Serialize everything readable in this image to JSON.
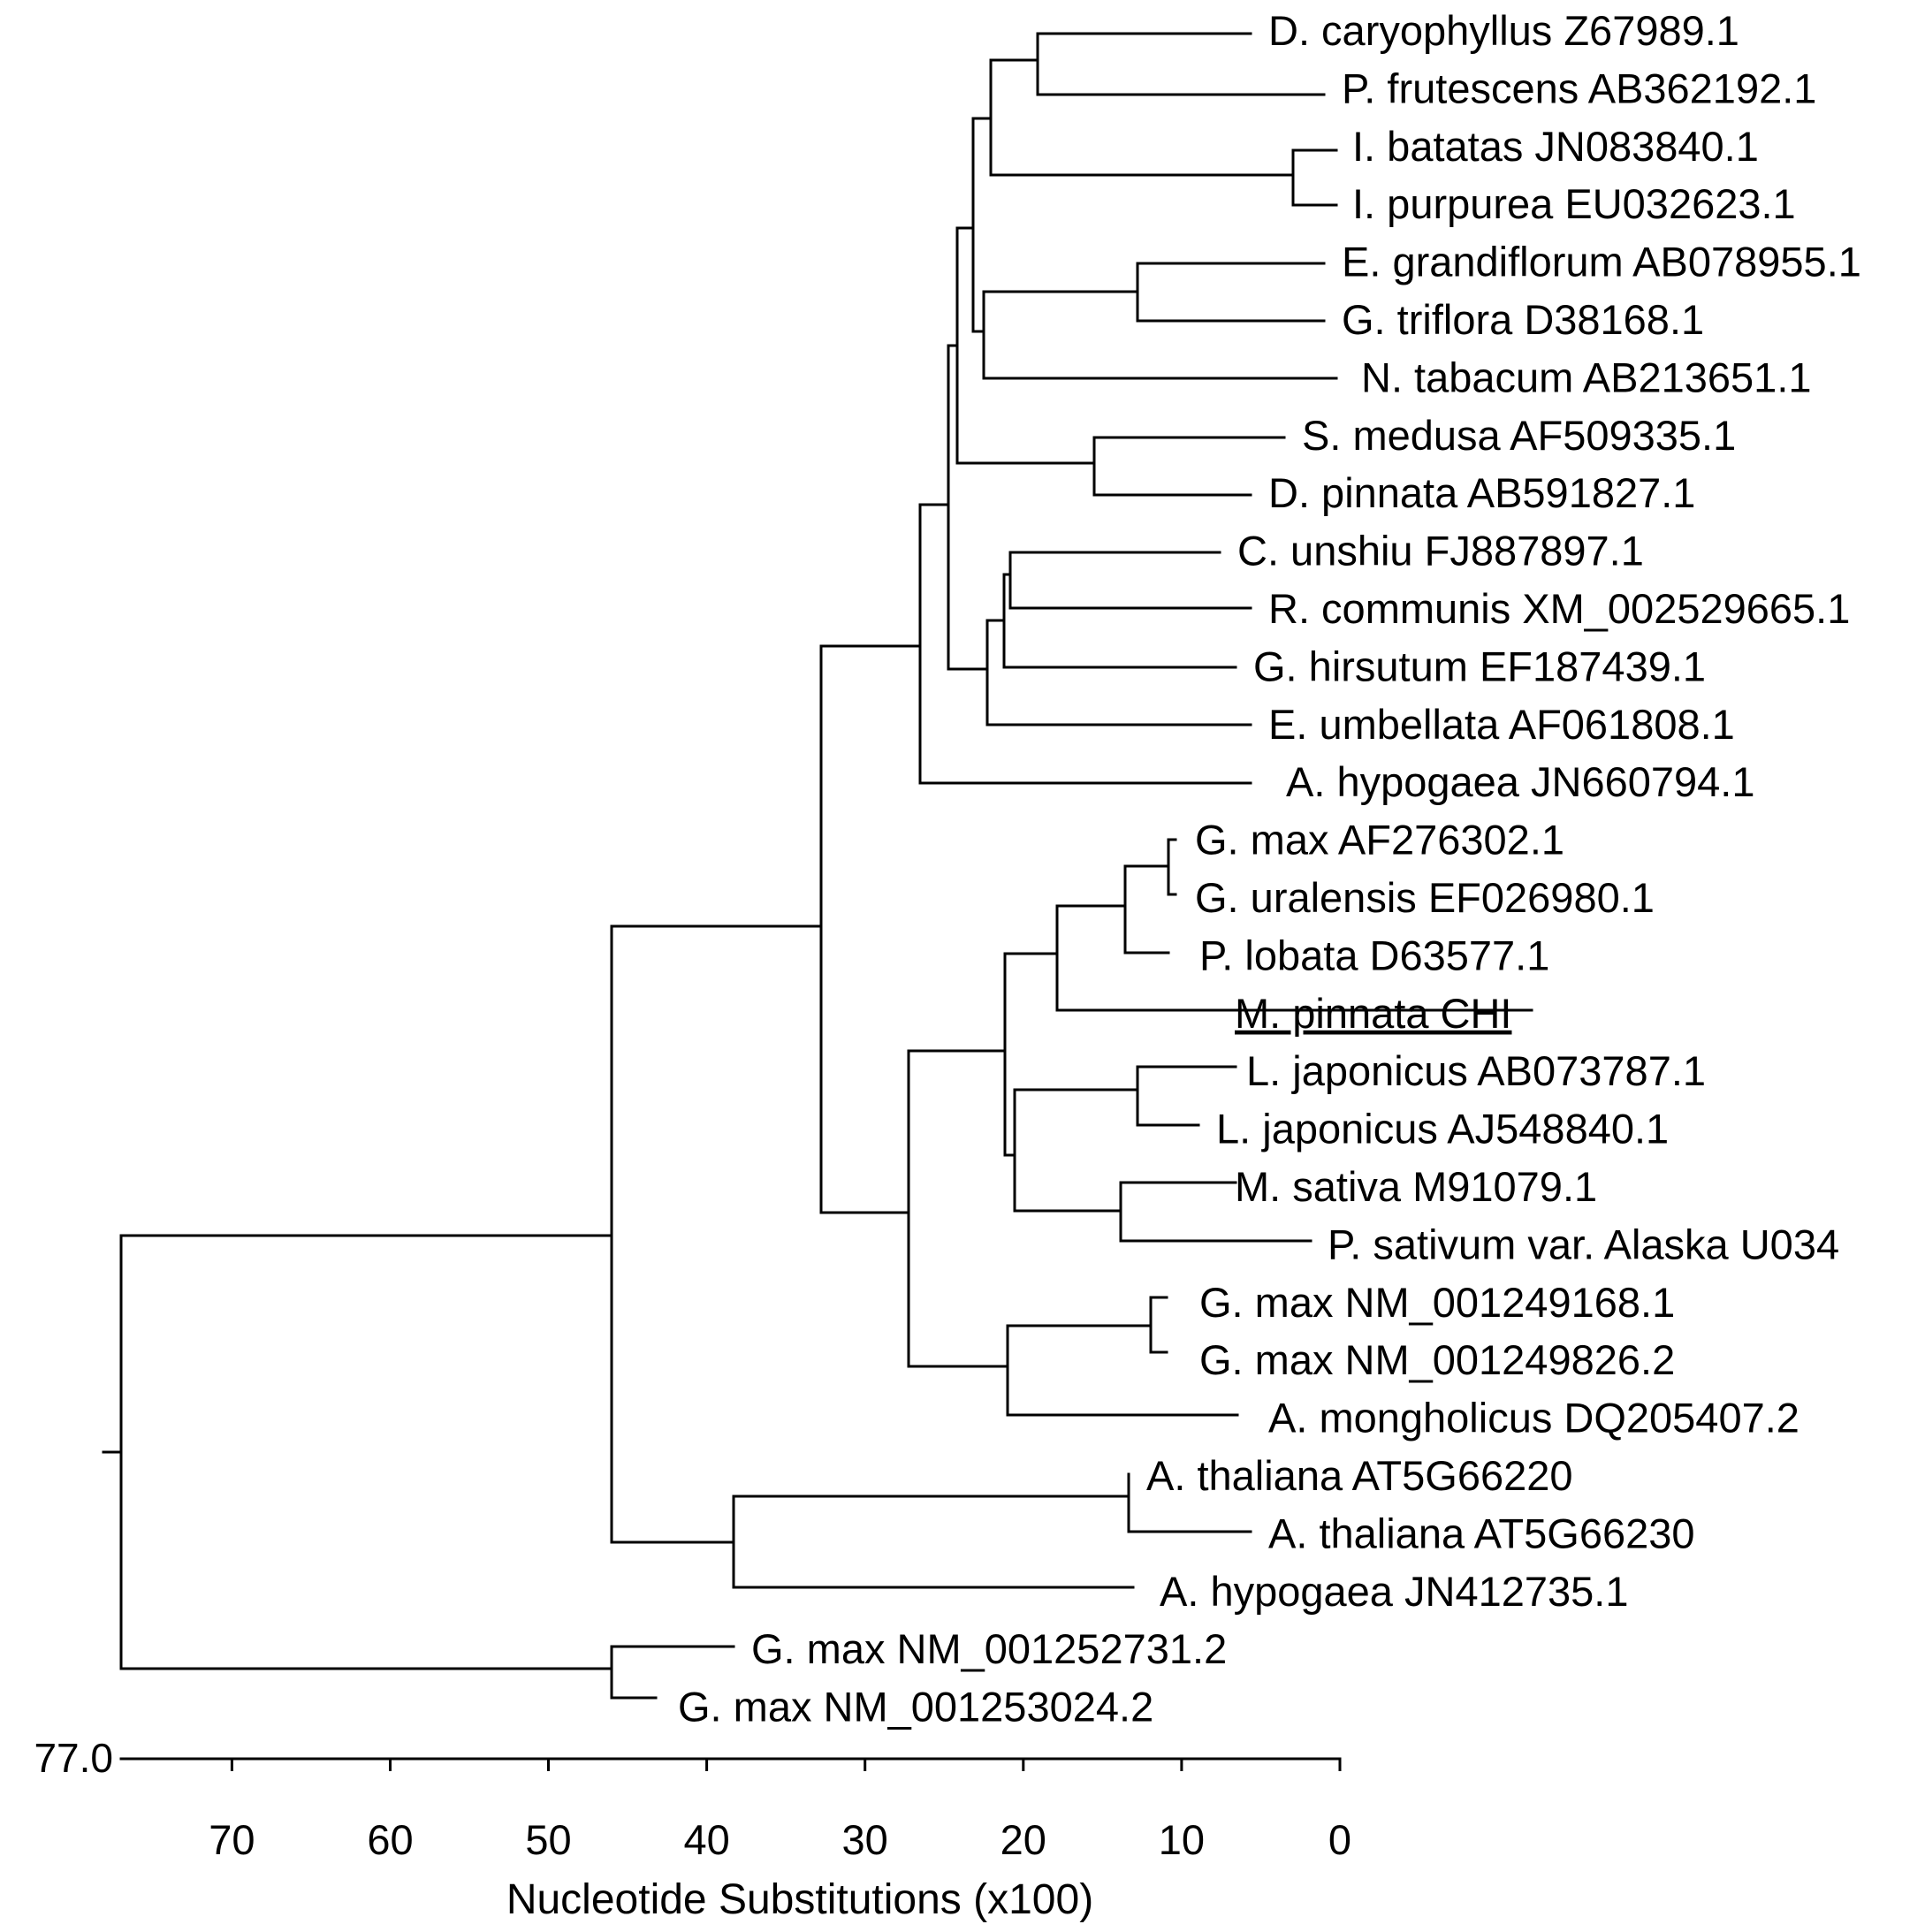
{
  "taxa": [
    {
      "id": "t1",
      "label": "D. caryophyllus Z67989.1"
    },
    {
      "id": "t2",
      "label": "P. frutescens AB362192.1"
    },
    {
      "id": "t3",
      "label": "I. batatas JN083840.1"
    },
    {
      "id": "t4",
      "label": "I. purpurea EU032623.1"
    },
    {
      "id": "t5",
      "label": "E. grandiflorum AB078955.1"
    },
    {
      "id": "t6",
      "label": "G. triflora D38168.1"
    },
    {
      "id": "t7",
      "label": "N. tabacum AB213651.1"
    },
    {
      "id": "t8",
      "label": "S. medusa AF509335.1"
    },
    {
      "id": "t9",
      "label": "D. pinnata AB591827.1"
    },
    {
      "id": "t10",
      "label": "C. unshiu FJ887897.1"
    },
    {
      "id": "t11",
      "label": "R. communis XM_002529665.1"
    },
    {
      "id": "t12",
      "label": "G. hirsutum EF187439.1"
    },
    {
      "id": "t13",
      "label": "E. umbellata AF061808.1"
    },
    {
      "id": "t14",
      "label": "A. hypogaea JN660794.1"
    },
    {
      "id": "t15",
      "label": "G. max AF276302.1"
    },
    {
      "id": "t16",
      "label": "G. uralensis EF026980.1"
    },
    {
      "id": "t17",
      "label": "P. lobata D63577.1"
    },
    {
      "id": "t18",
      "label": "M. pinnata CHI",
      "underline": true
    },
    {
      "id": "t19",
      "label": "L. japonicus AB073787.1"
    },
    {
      "id": "t20",
      "label": "L. japonicus AJ548840.1"
    },
    {
      "id": "t21",
      "label": "M. sativa M91079.1"
    },
    {
      "id": "t22",
      "label": "P. sativum var. Alaska U034"
    },
    {
      "id": "t23",
      "label": "G. max NM_001249168.1"
    },
    {
      "id": "t24",
      "label": "G. max NM_001249826.2"
    },
    {
      "id": "t25",
      "label": "A. mongholicus DQ205407.2"
    },
    {
      "id": "t26",
      "label": "A. thaliana AT5G66220"
    },
    {
      "id": "t27",
      "label": "A. thaliana AT5G66230"
    },
    {
      "id": "t28",
      "label": "A. hypogaea JN412735.1"
    },
    {
      "id": "t29",
      "label": "G. max NM_001252731.2"
    },
    {
      "id": "t30",
      "label": "G. max NM_001253024.2"
    }
  ],
  "axis": {
    "title": "Nucleotide Substitutions (x100)",
    "root_value_label": "77.0",
    "min": 0,
    "max": 77,
    "ticks": [
      0,
      10,
      20,
      30,
      40,
      50,
      60,
      70
    ],
    "tick_labels": [
      "0",
      "10",
      "20",
      "30",
      "40",
      "50",
      "60",
      "70"
    ]
  },
  "colors": {
    "line": "#000000",
    "background": "#ffffff"
  }
}
